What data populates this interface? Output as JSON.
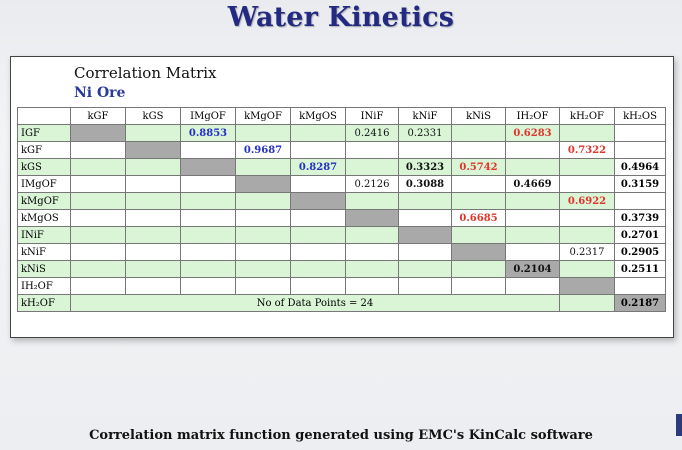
{
  "title": "Water Kinetics",
  "matrix_title": "Correlation Matrix",
  "ore": "Ni Ore",
  "caption": "Correlation matrix function generated using EMC's KinCalc software",
  "columns": [
    "kGF",
    "kGS",
    "IMgOF",
    "kMgOF",
    "kMgOS",
    "INiF",
    "kNiF",
    "kNiS",
    "IH₂OF",
    "kH₂OF",
    "kH₂OS"
  ],
  "rows": [
    {
      "label": "IGF",
      "cells": [
        "",
        "",
        "0.8853",
        "",
        "",
        "0.2416",
        "0.2331",
        "",
        "0.6283",
        "",
        ""
      ]
    },
    {
      "label": "kGF",
      "cells": [
        "",
        "",
        "",
        "0.9687",
        "",
        "",
        "",
        "",
        "",
        "0.7322",
        ""
      ]
    },
    {
      "label": "kGS",
      "cells": [
        "",
        "",
        "",
        "",
        "0.8287",
        "",
        "0.3323",
        "0.5742",
        "",
        "",
        "0.4964"
      ]
    },
    {
      "label": "IMgOF",
      "cells": [
        "",
        "",
        "",
        "",
        "",
        "0.2126",
        "0.3088",
        "",
        "0.4669",
        "",
        "0.3159"
      ]
    },
    {
      "label": "kMgOF",
      "cells": [
        "",
        "",
        "",
        "",
        "",
        "",
        "",
        "",
        "",
        "0.6922",
        ""
      ]
    },
    {
      "label": "kMgOS",
      "cells": [
        "",
        "",
        "",
        "",
        "",
        "",
        "",
        "0.6685",
        "",
        "",
        "0.3739"
      ]
    },
    {
      "label": "INiF",
      "cells": [
        "",
        "",
        "",
        "",
        "",
        "",
        "",
        "",
        "",
        "",
        "0.2701"
      ]
    },
    {
      "label": "kNiF",
      "cells": [
        "",
        "",
        "",
        "",
        "",
        "",
        "",
        "",
        "",
        "0.2317",
        "0.2905"
      ]
    },
    {
      "label": "kNiS",
      "cells": [
        "",
        "",
        "",
        "",
        "",
        "",
        "",
        "",
        "0.2104",
        "",
        "0.2511"
      ]
    },
    {
      "label": "IH₂OF",
      "cells": [
        "",
        "",
        "",
        "",
        "",
        "",
        "",
        "",
        "",
        "",
        ""
      ]
    },
    {
      "label": "kH₂OF",
      "cells": [
        "",
        "",
        "",
        "",
        "",
        "",
        "",
        "",
        "",
        "",
        "0.2187"
      ]
    }
  ],
  "data_points_note": "No of Data Points = 24",
  "colors": {
    "title": "#242a82",
    "ore": "#2a3a9c",
    "blue_value": "#2330c8",
    "red_value": "#e0352b",
    "row_green": "#d9f5d6",
    "diagonal_gray": "#a9a9a9"
  },
  "value_colors": {
    "0.8853": "blue",
    "0.9687": "blue",
    "0.8287": "blue",
    "0.6283": "red",
    "0.7322": "red",
    "0.5742": "red",
    "0.6922": "red",
    "0.6685": "red",
    "0.3323": "blk",
    "0.3088": "blk",
    "0.4669": "blk",
    "0.2104": "blk"
  }
}
